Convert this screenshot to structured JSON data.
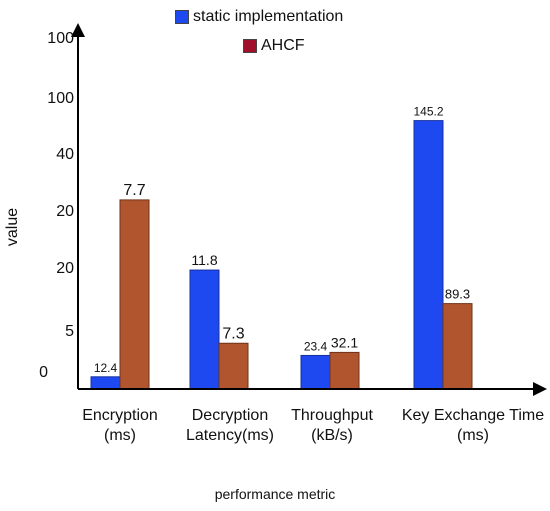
{
  "chart_data": {
    "type": "bar",
    "categories": [
      "Encryption (ms)",
      "Decryption Latency(ms)",
      "Throughput (kB/s)",
      "Key Exchange Time (ms)"
    ],
    "category_lines": [
      [
        "Encryption",
        "(ms)"
      ],
      [
        "Decryption",
        "Latency(ms)"
      ],
      [
        "Throughput",
        "(kB/s)"
      ],
      [
        "Key Exchange Time",
        "(ms)"
      ]
    ],
    "y_tick_labels": [
      "0",
      "5",
      "20",
      "20",
      "40",
      "100",
      "100"
    ],
    "xlabel": "performance metric",
    "ylabel": "value",
    "series": [
      {
        "name": "static implementation",
        "color": "#1f49f0",
        "values": [
          12.4,
          11.8,
          23.4,
          145.2
        ],
        "labels": [
          "12.4",
          "11.8",
          "23.4",
          "145.2"
        ],
        "heights": [
          0.04,
          0.39,
          0.11,
          0.88
        ]
      },
      {
        "name": "AHCF",
        "color": "#b0552e",
        "values": [
          7.7,
          7.3,
          32.1,
          89.3
        ],
        "labels": [
          "7.7",
          "7.3",
          "32.1",
          "89.3"
        ],
        "heights": [
          0.62,
          0.15,
          0.12,
          0.28
        ]
      }
    ],
    "legend_colors": [
      "#1f49f0",
      "#a0102a"
    ],
    "legend_placement": "top",
    "grid": false
  }
}
